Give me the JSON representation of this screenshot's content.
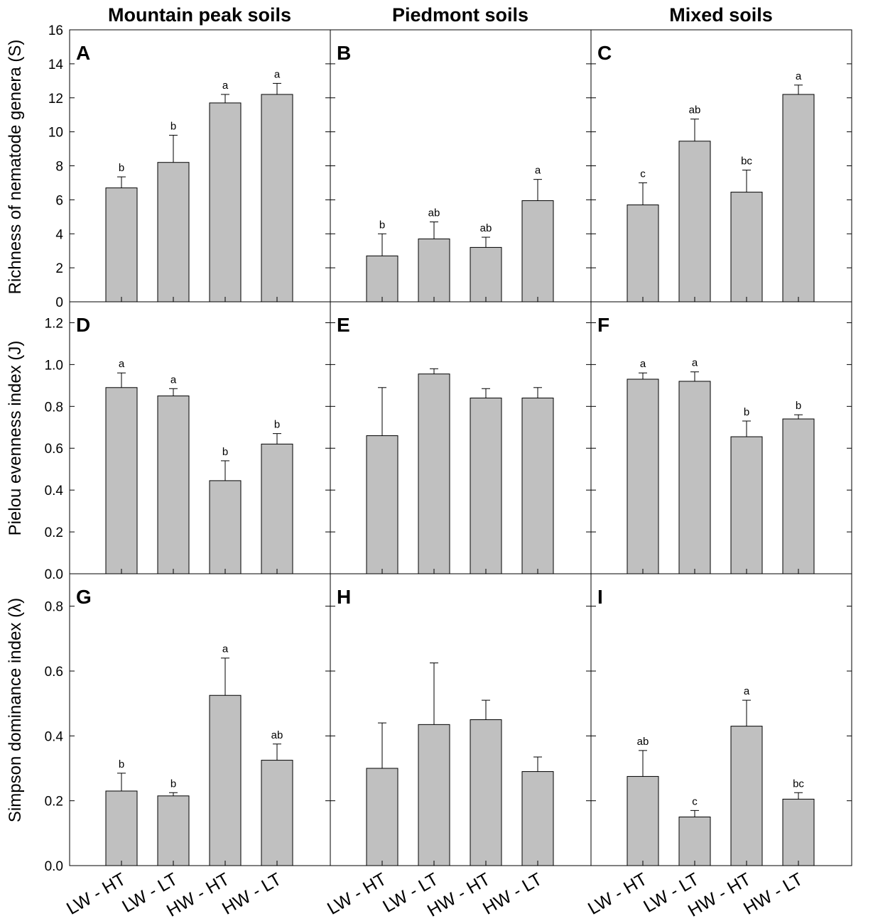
{
  "column_titles": [
    "Mountain peak soils",
    "Piedmont soils",
    "Mixed soils"
  ],
  "row_ylabels": [
    "Richness of nematode genera (S)",
    "Pielou evenness index (J)",
    "Simpson dominance index (λ)"
  ],
  "colors": {
    "bar_fill": "#c0c0c0",
    "stroke": "#000000"
  },
  "chart_data": [
    {
      "panel": "A",
      "type": "bar",
      "categories": [
        "LW - HT",
        "LW - LT",
        "HW - HT",
        "HW - LT"
      ],
      "values": [
        6.7,
        8.2,
        11.7,
        12.2
      ],
      "errors": [
        0.65,
        1.6,
        0.5,
        0.65
      ],
      "labels": [
        "b",
        "b",
        "a",
        "a"
      ],
      "ylim": [
        0,
        16
      ],
      "yticks": [
        "0",
        "2",
        "4",
        "6",
        "8",
        "10",
        "12",
        "14",
        "16"
      ]
    },
    {
      "panel": "B",
      "type": "bar",
      "categories": [
        "LW - HT",
        "LW - LT",
        "HW - HT",
        "HW - LT"
      ],
      "values": [
        2.7,
        3.7,
        3.2,
        5.95
      ],
      "errors": [
        1.3,
        1.0,
        0.6,
        1.25
      ],
      "labels": [
        "b",
        "ab",
        "ab",
        "a"
      ],
      "ylim": [
        0,
        16
      ],
      "yticks": []
    },
    {
      "panel": "C",
      "type": "bar",
      "categories": [
        "LW - HT",
        "LW - LT",
        "HW - HT",
        "HW - LT"
      ],
      "values": [
        5.7,
        9.45,
        6.45,
        12.2
      ],
      "errors": [
        1.3,
        1.3,
        1.3,
        0.55
      ],
      "labels": [
        "c",
        "ab",
        "bc",
        "a"
      ],
      "ylim": [
        0,
        16
      ],
      "yticks": []
    },
    {
      "panel": "D",
      "type": "bar",
      "categories": [
        "LW - HT",
        "LW - LT",
        "HW - HT",
        "HW - LT"
      ],
      "values": [
        0.89,
        0.85,
        0.445,
        0.62
      ],
      "errors": [
        0.07,
        0.035,
        0.095,
        0.05
      ],
      "labels": [
        "a",
        "a",
        "b",
        "b"
      ],
      "ylim": [
        0,
        1.3
      ],
      "yticks": [
        "0.0",
        "0.2",
        "0.4",
        "0.6",
        "0.8",
        "1.0",
        "1.2"
      ]
    },
    {
      "panel": "E",
      "type": "bar",
      "categories": [
        "LW - HT",
        "LW - LT",
        "HW - HT",
        "HW - LT"
      ],
      "values": [
        0.66,
        0.955,
        0.84,
        0.84
      ],
      "errors": [
        0.23,
        0.025,
        0.045,
        0.05
      ],
      "labels": [
        "",
        "",
        "",
        ""
      ],
      "ylim": [
        0,
        1.3
      ],
      "yticks": []
    },
    {
      "panel": "F",
      "type": "bar",
      "categories": [
        "LW - HT",
        "LW - LT",
        "HW - HT",
        "HW - LT"
      ],
      "values": [
        0.93,
        0.92,
        0.655,
        0.74
      ],
      "errors": [
        0.03,
        0.045,
        0.075,
        0.02
      ],
      "labels": [
        "a",
        "a",
        "b",
        "b"
      ],
      "ylim": [
        0,
        1.3
      ],
      "yticks": []
    },
    {
      "panel": "G",
      "type": "bar",
      "categories": [
        "LW - HT",
        "LW - LT",
        "HW - HT",
        "HW - LT"
      ],
      "values": [
        0.23,
        0.215,
        0.525,
        0.325
      ],
      "errors": [
        0.055,
        0.01,
        0.115,
        0.05
      ],
      "labels": [
        "b",
        "b",
        "a",
        "ab"
      ],
      "ylim": [
        0,
        0.9
      ],
      "yticks": [
        "0.0",
        "0.2",
        "0.4",
        "0.6",
        "0.8"
      ]
    },
    {
      "panel": "H",
      "type": "bar",
      "categories": [
        "LW - HT",
        "LW - LT",
        "HW - HT",
        "HW - LT"
      ],
      "values": [
        0.3,
        0.435,
        0.45,
        0.29
      ],
      "errors": [
        0.14,
        0.19,
        0.06,
        0.045
      ],
      "labels": [
        "",
        "",
        "",
        ""
      ],
      "ylim": [
        0,
        0.9
      ],
      "yticks": []
    },
    {
      "panel": "I",
      "type": "bar",
      "categories": [
        "LW - HT",
        "LW - LT",
        "HW - HT",
        "HW - LT"
      ],
      "values": [
        0.275,
        0.15,
        0.43,
        0.205
      ],
      "errors": [
        0.08,
        0.02,
        0.08,
        0.02
      ],
      "labels": [
        "ab",
        "c",
        "a",
        "bc"
      ],
      "ylim": [
        0,
        0.9
      ],
      "yticks": []
    }
  ]
}
